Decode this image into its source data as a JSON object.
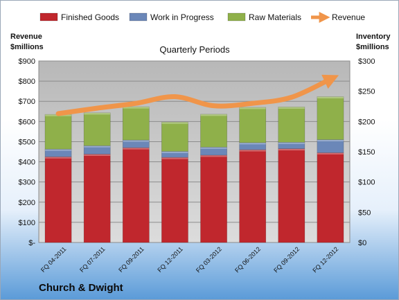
{
  "chart_data": {
    "type": "bar",
    "stacked": true,
    "title": "Quarterly Periods",
    "company": "Church & Dwight",
    "categories": [
      "FQ 04-2011",
      "FQ 07-2011",
      "FQ 09-2011",
      "FQ 12-2011",
      "FQ 03-2012",
      "FQ 06-2012",
      "FQ 09-2012",
      "FQ 12-2012"
    ],
    "y_left": {
      "label_line1": "Revenue",
      "label_line2": "$millions",
      "min": 0,
      "max": 900,
      "step": 100,
      "ticks": [
        "$-",
        "$100",
        "$200",
        "$300",
        "$400",
        "$500",
        "$600",
        "$700",
        "$800",
        "$900"
      ]
    },
    "y_right": {
      "label_line1": "Inventory",
      "label_line2": "$millions",
      "min": 0,
      "max": 300,
      "step": 50,
      "ticks": [
        "$0",
        "$50",
        "$100",
        "$150",
        "$200",
        "$250",
        "$300"
      ]
    },
    "series": [
      {
        "name": "Finished Goods",
        "axis": "left",
        "color": "#c0272d",
        "values": [
          425,
          438,
          470,
          422,
          433,
          460,
          465,
          445
        ]
      },
      {
        "name": "Work in Progress",
        "axis": "left",
        "color": "#6b87b8",
        "values": [
          38,
          42,
          38,
          30,
          40,
          35,
          32,
          65
        ]
      },
      {
        "name": "Raw Materials",
        "axis": "left",
        "color": "#8fb04a",
        "values": [
          172,
          163,
          165,
          145,
          163,
          175,
          175,
          213
        ]
      },
      {
        "name": "Revenue",
        "axis": "right",
        "type": "line",
        "color": "#f0954a",
        "values": [
          213,
          222,
          230,
          241,
          226,
          230,
          240,
          270
        ]
      }
    ],
    "legend_position": "top",
    "grid": true
  }
}
